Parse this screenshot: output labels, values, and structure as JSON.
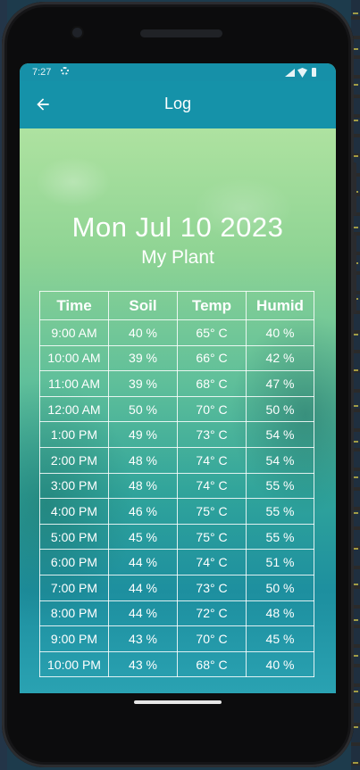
{
  "status": {
    "time": "7:27"
  },
  "appbar": {
    "title": "Log"
  },
  "header": {
    "date": "Mon Jul 10 2023",
    "plant": "My Plant"
  },
  "table": {
    "columns": [
      "Time",
      "Soil",
      "Temp",
      "Humid"
    ],
    "rows": [
      [
        "9:00 AM",
        "40 %",
        "65° C",
        "40 %"
      ],
      [
        "10:00 AM",
        "39 %",
        "66° C",
        "42 %"
      ],
      [
        "11:00 AM",
        "39 %",
        "68° C",
        "47 %"
      ],
      [
        "12:00 AM",
        "50 %",
        "70° C",
        "50 %"
      ],
      [
        "1:00 PM",
        "49 %",
        "73° C",
        "54 %"
      ],
      [
        "2:00 PM",
        "48 %",
        "74° C",
        "54 %"
      ],
      [
        "3:00 PM",
        "48 %",
        "74° C",
        "55 %"
      ],
      [
        "4:00 PM",
        "46 %",
        "75° C",
        "55 %"
      ],
      [
        "5:00 PM",
        "45 %",
        "75° C",
        "55 %"
      ],
      [
        "6:00 PM",
        "44 %",
        "74° C",
        "51 %"
      ],
      [
        "7:00 PM",
        "44 %",
        "73° C",
        "50 %"
      ],
      [
        "8:00 PM",
        "44 %",
        "72° C",
        "48 %"
      ],
      [
        "9:00 PM",
        "43 %",
        "70° C",
        "45 %"
      ],
      [
        "10:00 PM",
        "43 %",
        "68° C",
        "40 %"
      ]
    ]
  },
  "icons": {
    "back": "arrow-left-icon",
    "settings": "gear-icon",
    "signal": "signal-icon",
    "wifi": "wifi-icon",
    "battery": "battery-icon"
  },
  "colors": {
    "appbar": "#1592a9",
    "statusbar": "#1690a8"
  }
}
